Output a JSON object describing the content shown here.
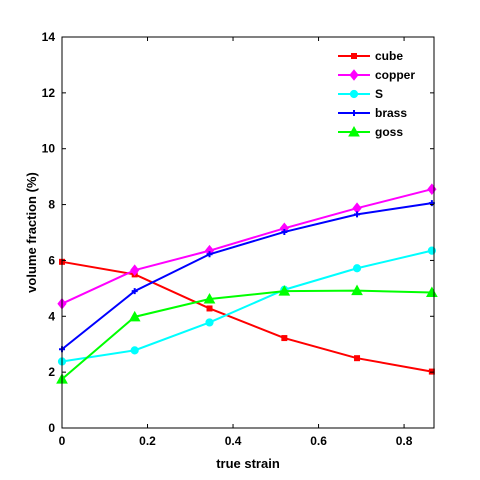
{
  "chart_data": {
    "type": "line",
    "xlabel": "true strain",
    "ylabel": "volume fraction (%)",
    "xlim": [
      0,
      0.87
    ],
    "ylim": [
      0,
      14
    ],
    "xticks": [
      0,
      0.2,
      0.4,
      0.6,
      0.8
    ],
    "xtick_labels": [
      "0",
      "0.2",
      "0.4",
      "0.6",
      "0.8"
    ],
    "yticks": [
      0,
      2,
      4,
      6,
      8,
      10,
      12,
      14
    ],
    "ytick_labels": [
      "0",
      "2",
      "4",
      "6",
      "8",
      "10",
      "12",
      "14"
    ],
    "grid": false,
    "legend_position": "top-right",
    "x": [
      0,
      0.17,
      0.345,
      0.52,
      0.69,
      0.865
    ],
    "series": [
      {
        "name": "cube",
        "color": "#ff0000",
        "marker": "square",
        "values": [
          5.95,
          5.5,
          4.28,
          3.22,
          2.5,
          2.02
        ]
      },
      {
        "name": "copper",
        "color": "#ff00ff",
        "marker": "diamond",
        "values": [
          4.45,
          5.65,
          6.35,
          7.15,
          7.87,
          8.55
        ]
      },
      {
        "name": "S",
        "color": "#00ffff",
        "marker": "circle",
        "values": [
          2.38,
          2.78,
          3.78,
          4.95,
          5.72,
          6.35
        ]
      },
      {
        "name": "brass",
        "color": "#0000ff",
        "marker": "plus",
        "values": [
          2.82,
          4.9,
          6.22,
          7.02,
          7.65,
          8.05
        ]
      },
      {
        "name": "goss",
        "color": "#00ff00",
        "marker": "triangle",
        "values": [
          1.75,
          3.98,
          4.62,
          4.9,
          4.92,
          4.85
        ]
      }
    ]
  }
}
